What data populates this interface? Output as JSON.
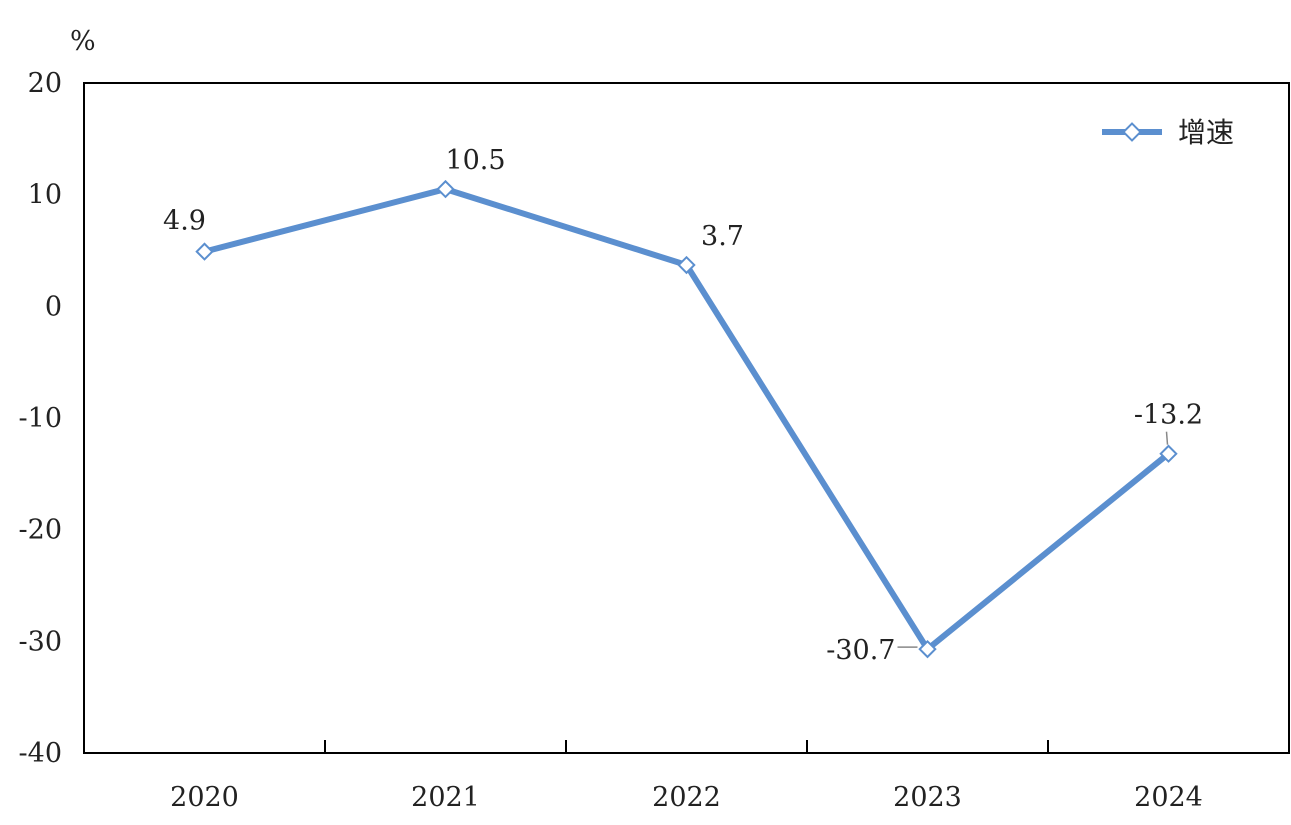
{
  "chart_data": {
    "type": "line",
    "y_unit": "%",
    "categories": [
      "2020",
      "2021",
      "2022",
      "2023",
      "2024"
    ],
    "series": [
      {
        "name": "增速",
        "values": [
          4.9,
          10.5,
          3.7,
          -30.7,
          -13.2
        ],
        "labels": [
          "4.9",
          "10.5",
          "3.7",
          "-30.7",
          "-13.2"
        ]
      }
    ],
    "ylim": [
      -40,
      20
    ],
    "y_ticks": [
      "20",
      "10",
      "0",
      "-10",
      "-20",
      "-30",
      "-40"
    ],
    "legend_position": "top-right",
    "grid": false,
    "marker": "diamond-hollow",
    "line_color": "#5b8fcf"
  }
}
